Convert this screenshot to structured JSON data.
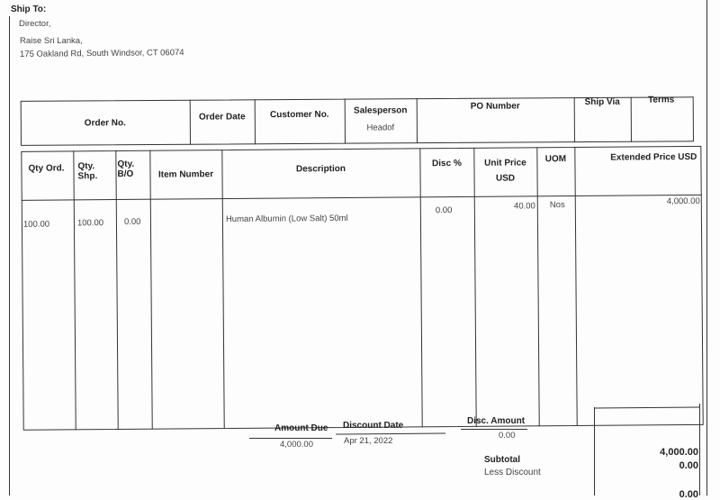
{
  "ship_to": {
    "label": "Ship To:",
    "lines": [
      "Director,",
      "Raise Sri Lanka,",
      "175 Oakland Rd, South Windsor, CT 06074"
    ]
  },
  "order_header": {
    "columns": [
      "Order No.",
      "Order Date",
      "Customer No.",
      "Salesperson",
      "PO Number",
      "Ship Via",
      "Terms"
    ],
    "values": {
      "salesperson": "Headof"
    }
  },
  "items": {
    "columns": [
      "Qty Ord.",
      "Qty. Shp.",
      "Qty. B/O",
      "Item Number",
      "Description",
      "Disc %",
      "Unit Price USD",
      "UOM",
      "Extended Price USD"
    ],
    "rows": [
      {
        "qty_ord": "100.00",
        "qty_shp": "100.00",
        "qty_bo": "0.00",
        "item_number": "",
        "description": "Human Albumin (Low Salt) 50ml",
        "disc": "0.00",
        "unit_price": "40.00",
        "uom": "Nos",
        "extended": "4,000.00"
      }
    ]
  },
  "summary": {
    "amount_due_label": "Amount Due",
    "amount_due": "4,000.00",
    "discount_date_label": "Discount Date",
    "discount_date": "Apr 21, 2022",
    "disc_amount_label": "Disc. Amount",
    "disc_amount": "0.00",
    "subtotal_label": "Subtotal",
    "subtotal": "4,000.00",
    "less_discount_label": "Less Discount",
    "less_discount": "0.00",
    "next_value": "0.00"
  }
}
